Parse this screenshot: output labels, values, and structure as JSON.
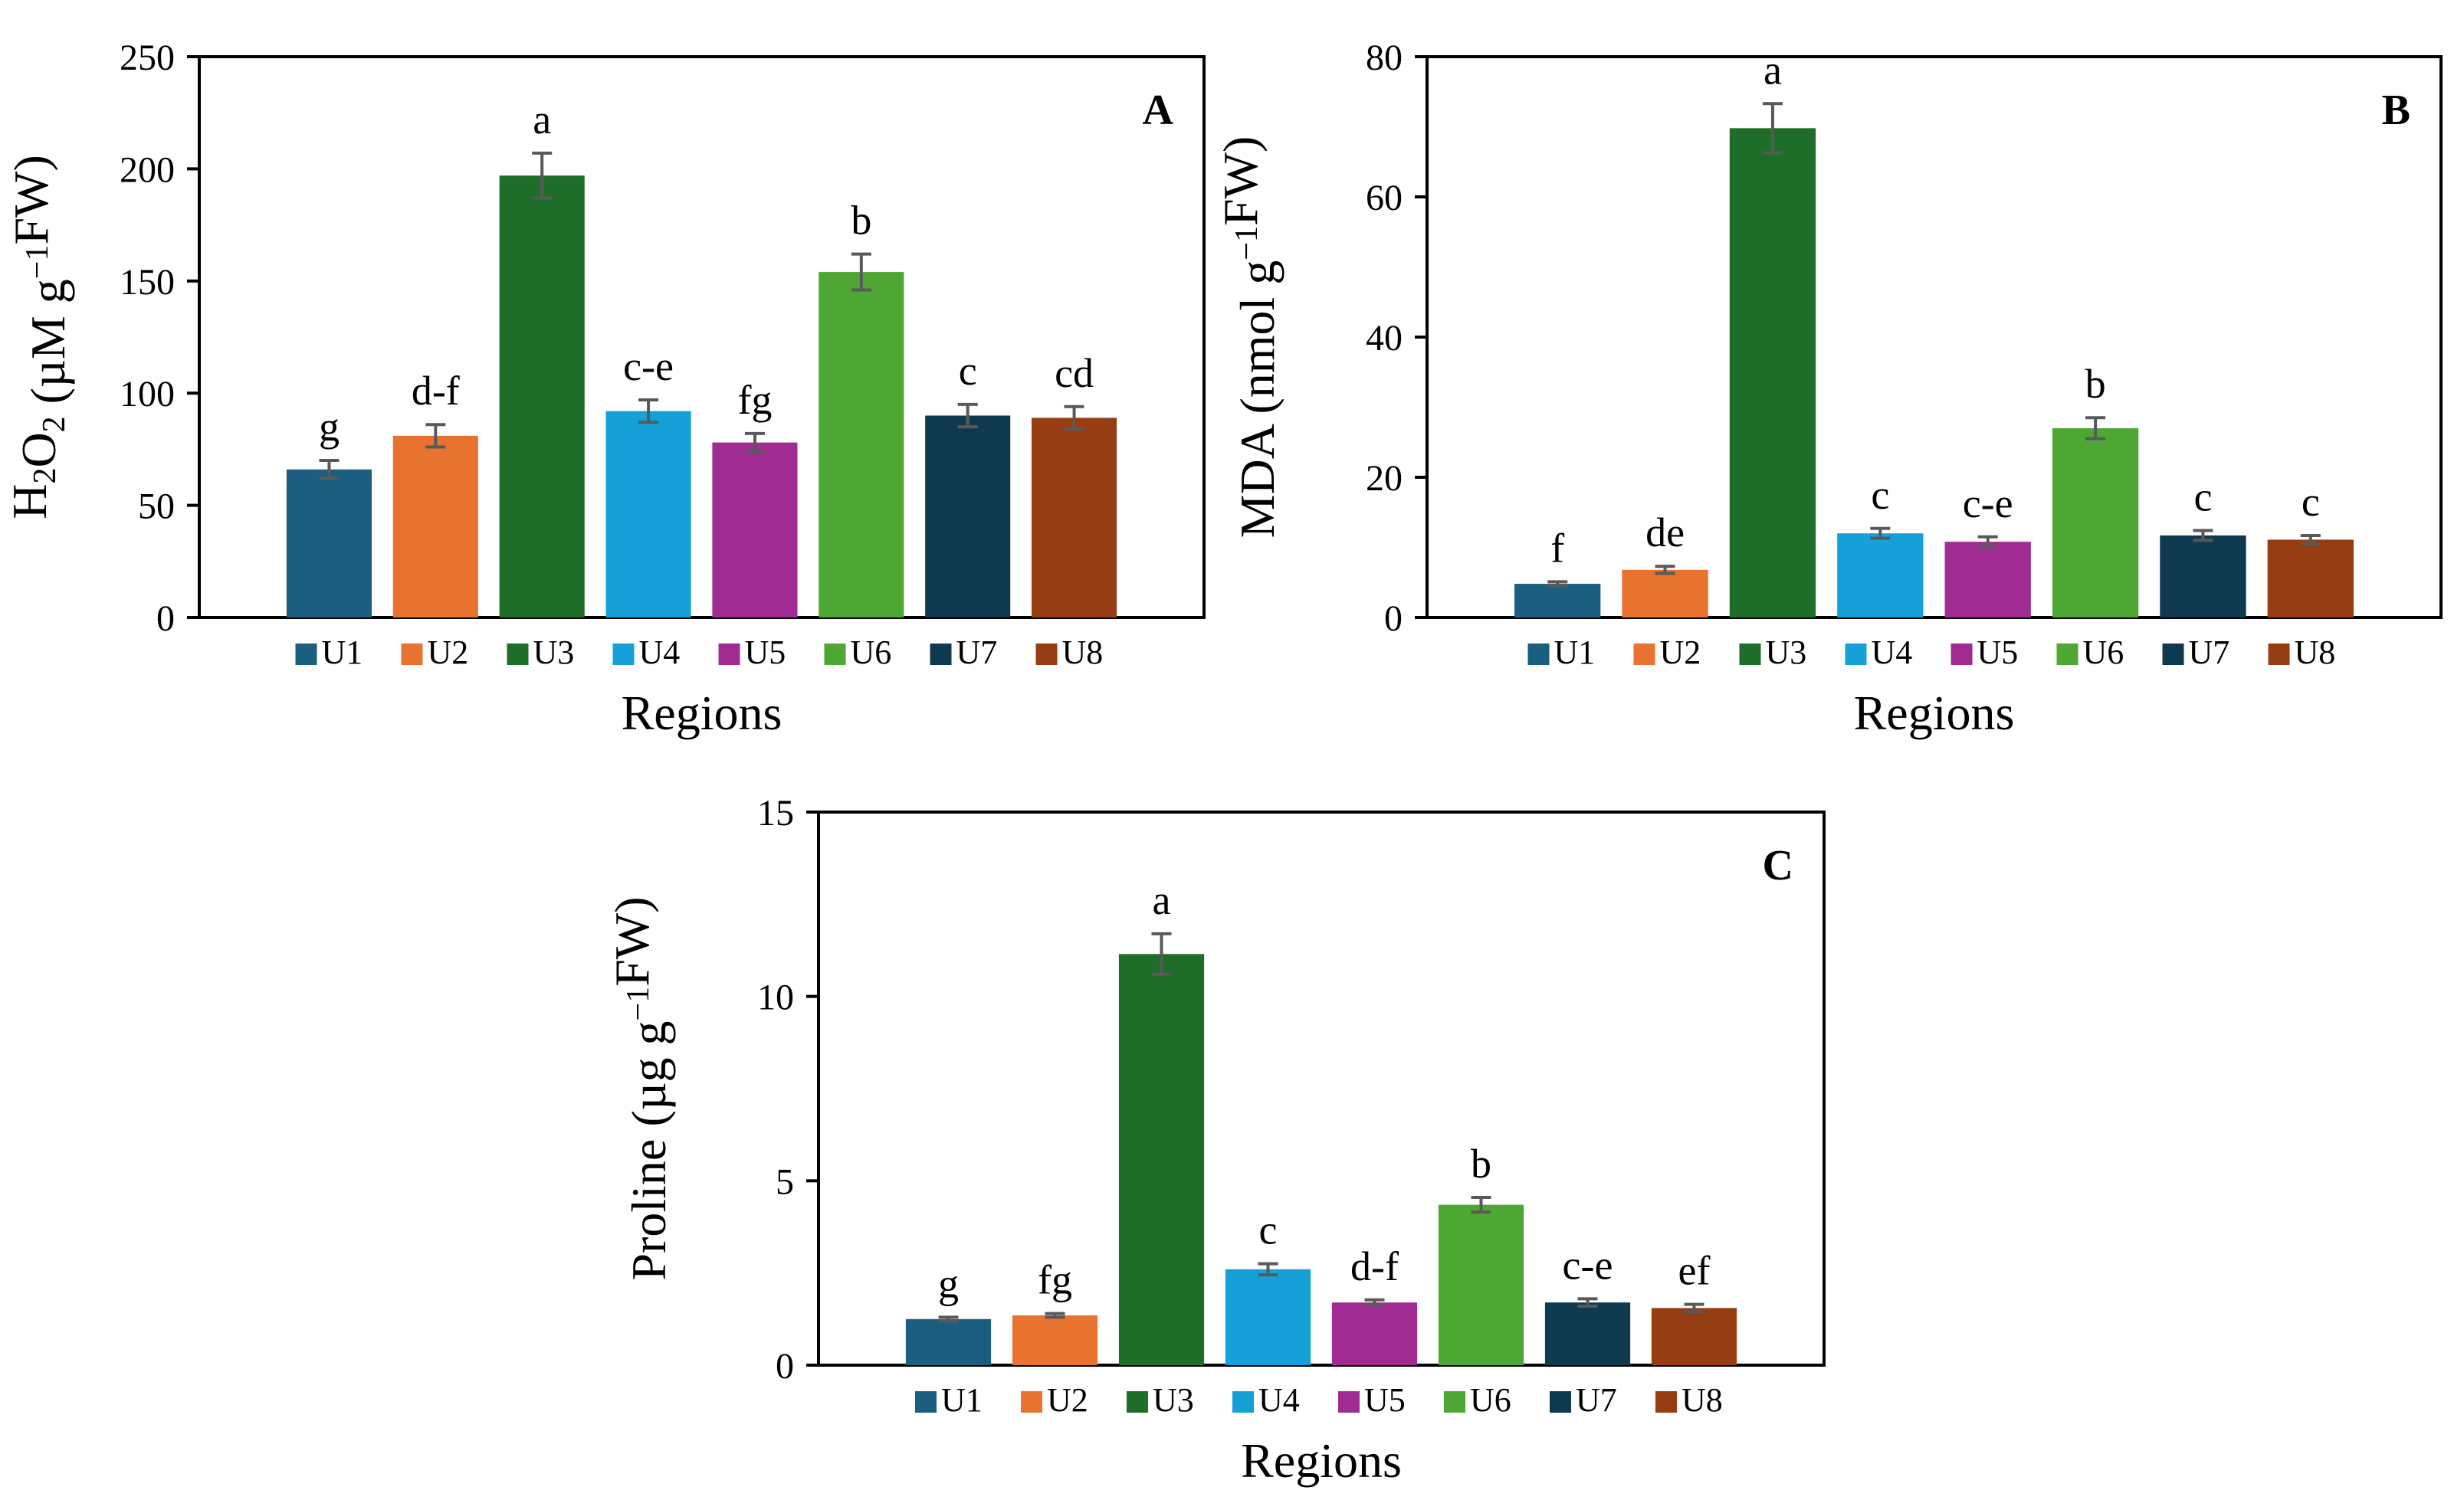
{
  "chart_data": [
    {
      "type": "bar",
      "panel": "A",
      "categories": [
        "U1",
        "U2",
        "U3",
        "U4",
        "U5",
        "U6",
        "U7",
        "U8"
      ],
      "values": [
        66,
        81,
        197,
        92,
        78,
        154,
        90,
        89
      ],
      "errors": [
        4,
        5,
        10,
        5,
        4,
        8,
        5,
        5
      ],
      "significance": [
        "g",
        "d-f",
        "a",
        "c-e",
        "fg",
        "b",
        "c",
        "cd"
      ],
      "ylabel_parts": [
        "H",
        "2",
        "O",
        "2",
        " (µM g",
        "−1",
        "FW)"
      ],
      "xlabel": "Regions",
      "ylim": [
        0,
        250
      ],
      "yticks": [
        0,
        50,
        100,
        150,
        200,
        250
      ],
      "colors": [
        "#1b5e80",
        "#e8722f",
        "#1e6e2a",
        "#16a0d8",
        "#a02c93",
        "#4fa733",
        "#0f394e",
        "#963d14"
      ]
    },
    {
      "type": "bar",
      "panel": "B",
      "categories": [
        "U1",
        "U2",
        "U3",
        "U4",
        "U5",
        "U6",
        "U7",
        "U8"
      ],
      "values": [
        4.8,
        6.8,
        69.8,
        12.0,
        10.8,
        27.0,
        11.7,
        11.1
      ],
      "errors": [
        0.3,
        0.5,
        3.5,
        0.7,
        0.7,
        1.5,
        0.7,
        0.6
      ],
      "significance": [
        "f",
        "de",
        "a",
        "c",
        "c-e",
        "b",
        "c",
        "c"
      ],
      "ylabel_parts": [
        "MDA (nmol g",
        "−1",
        "FW)"
      ],
      "xlabel": "Regions",
      "ylim": [
        0,
        80
      ],
      "yticks": [
        0,
        20,
        40,
        60,
        80
      ],
      "colors": [
        "#1b5e80",
        "#e8722f",
        "#1e6e2a",
        "#16a0d8",
        "#a02c93",
        "#4fa733",
        "#0f394e",
        "#963d14"
      ]
    },
    {
      "type": "bar",
      "panel": "C",
      "categories": [
        "U1",
        "U2",
        "U3",
        "U4",
        "U5",
        "U6",
        "U7",
        "U8"
      ],
      "values": [
        1.25,
        1.35,
        11.15,
        2.6,
        1.7,
        4.35,
        1.7,
        1.55
      ],
      "errors": [
        0.05,
        0.05,
        0.55,
        0.15,
        0.07,
        0.2,
        0.1,
        0.1
      ],
      "significance": [
        "g",
        "fg",
        "a",
        "c",
        "d-f",
        "b",
        "c-e",
        "ef"
      ],
      "ylabel_parts": [
        "Proline (µg g",
        "−1",
        "FW)"
      ],
      "xlabel": "Regions",
      "ylim": [
        0,
        15
      ],
      "yticks": [
        0,
        5,
        10,
        15
      ],
      "colors": [
        "#1b5e80",
        "#e8722f",
        "#1e6e2a",
        "#16a0d8",
        "#a02c93",
        "#4fa733",
        "#0f394e",
        "#963d14"
      ]
    }
  ]
}
